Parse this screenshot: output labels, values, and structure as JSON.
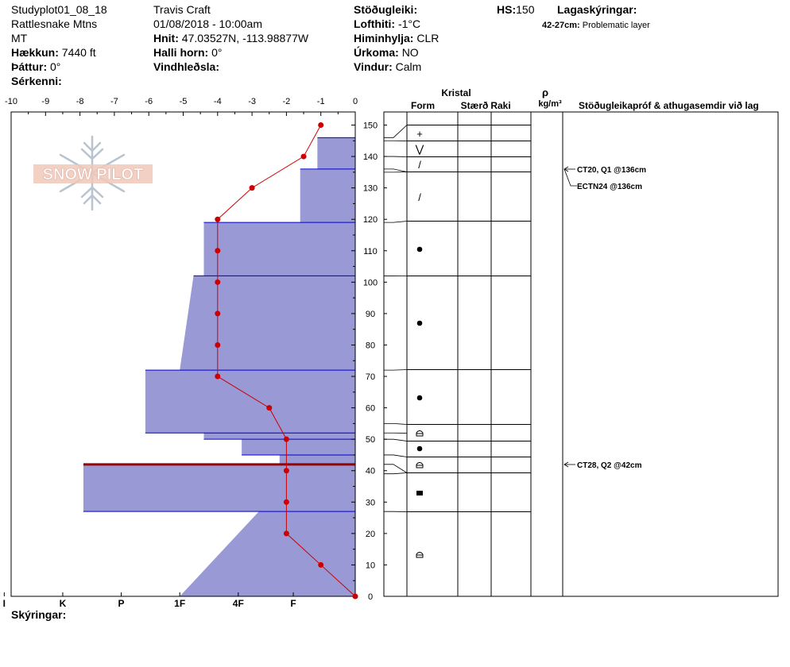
{
  "header": {
    "studyplot": "Studyplot01_08_18",
    "location": "Rattlesnake Mtns",
    "state": "MT",
    "elevation_label": "Hækkun:",
    "elevation_value": "7440 ft",
    "aspect_label": "Þáttur:",
    "aspect_value": "0°",
    "features_label": "Sérkenni:",
    "observer": "Travis  Craft",
    "datetime": "01/08/2018 - 10:00am",
    "coords_label": "Hnit:",
    "coords_value": "47.03527N, -113.98877W",
    "slope_label": "Halli horn:",
    "slope_value": "0°",
    "wind_loading_label": "Vindhleðsla:",
    "stability_label": "Stöðugleiki:",
    "air_temp_label": "Lofthiti:",
    "air_temp_value": "-1°C",
    "sky_label": "Himinhylja:",
    "sky_value": "CLR",
    "precip_label": "Úrkoma:",
    "precip_value": "NO",
    "wind_label": "Vindur:",
    "wind_value": "Calm",
    "hs_label": "HS:",
    "hs_value": "150",
    "layer_notes_label": "Lagaskýringar:",
    "layer_note_range": "42-27cm:",
    "layer_note_text": "Problematic layer"
  },
  "logo": {
    "text": "SNOW PILOT"
  },
  "footer": {
    "notes_label": "Skýringar:"
  },
  "columns": {
    "crystal": "Kristal",
    "form": "Form",
    "size": "Stærð",
    "moisture": "Raki",
    "density_symbol": "ρ",
    "density_unit": "kg/m³",
    "tests": "Stöðugleikapróf & athugasemdir við lag"
  },
  "colors": {
    "hardness_fill": "#9999d6",
    "hardness_edge": "#0000cc",
    "temp_line": "#cc0000",
    "weak_layer": "#990000",
    "logo": "#f0c8b8",
    "snowflake": "#b8c4d0"
  },
  "chart_data": {
    "type": "snow-profile",
    "temperature_axis": {
      "ticks": [
        -10,
        -9,
        -8,
        -7,
        -6,
        -5,
        -4,
        -3,
        -2,
        -1,
        0
      ],
      "range": [
        -10,
        0
      ]
    },
    "height_axis": {
      "ticks": [
        0,
        10,
        20,
        30,
        40,
        50,
        60,
        70,
        80,
        90,
        100,
        110,
        120,
        130,
        140,
        150
      ],
      "range": [
        0,
        150
      ]
    },
    "hardness_axis": {
      "labels": [
        "I",
        "K",
        "P",
        "1F",
        "4F",
        "F"
      ],
      "positions": [
        10.2,
        8.5,
        6.8,
        5.1,
        3.4,
        1.8
      ]
    },
    "hardness_profile": {
      "top": [
        [
          150,
          0
        ],
        [
          146,
          0
        ],
        [
          146,
          1.1
        ],
        [
          136,
          1.1
        ],
        [
          136,
          1.6
        ],
        [
          119,
          1.6
        ],
        [
          119,
          4.4
        ],
        [
          102,
          4.4
        ],
        [
          102,
          4.7
        ],
        [
          72,
          5.1
        ],
        [
          72,
          6.1
        ],
        [
          52,
          6.1
        ],
        [
          52,
          4.4
        ],
        [
          50,
          4.4
        ],
        [
          50,
          3.3
        ],
        [
          45,
          3.3
        ],
        [
          45,
          2.2
        ],
        [
          42,
          2.2
        ],
        [
          42,
          7.9
        ],
        [
          27,
          7.9
        ],
        [
          27,
          2.8
        ],
        [
          0,
          5.1
        ],
        [
          0,
          0
        ]
      ]
    },
    "layer_boundaries": [
      146,
      145,
      140,
      136,
      135,
      119,
      102,
      72,
      55,
      52,
      50,
      45,
      42,
      39,
      27
    ],
    "weak_layer_height": 42,
    "temperature_profile": {
      "series": [
        {
          "height": [
            150,
            140,
            130,
            120,
            110,
            100,
            90,
            80,
            70,
            60,
            50,
            40,
            30,
            20,
            10,
            0
          ],
          "temp": [
            -1,
            -1.5,
            -3,
            -4,
            -4,
            -4,
            -4,
            -4,
            -4,
            -2.5,
            -2,
            -2,
            -2,
            -2,
            -1,
            0
          ]
        }
      ]
    },
    "crystal_forms": [
      {
        "height": 147,
        "symbol": "+"
      },
      {
        "height": 142,
        "symbol": "⋁"
      },
      {
        "height": 138,
        "symbol": "/"
      },
      {
        "height": 127,
        "symbol": "/"
      },
      {
        "height": 110,
        "symbol": "●"
      },
      {
        "height": 87,
        "symbol": "●"
      },
      {
        "height": 63,
        "symbol": "●"
      },
      {
        "height": 53,
        "symbol": "⌂"
      },
      {
        "height": 47,
        "symbol": "●"
      },
      {
        "height": 42,
        "symbol": "⌂"
      },
      {
        "height": 33,
        "symbol": "■"
      },
      {
        "height": 14,
        "symbol": "⌂"
      }
    ],
    "stability_tests": [
      {
        "height": 136,
        "text": "CT20, Q1 @136cm",
        "arrow": true
      },
      {
        "height": 131,
        "text": "ECTN24 @136cm",
        "arrow": false
      },
      {
        "height": 42,
        "text": "CT28, Q2 @42cm",
        "arrow": true
      }
    ]
  }
}
